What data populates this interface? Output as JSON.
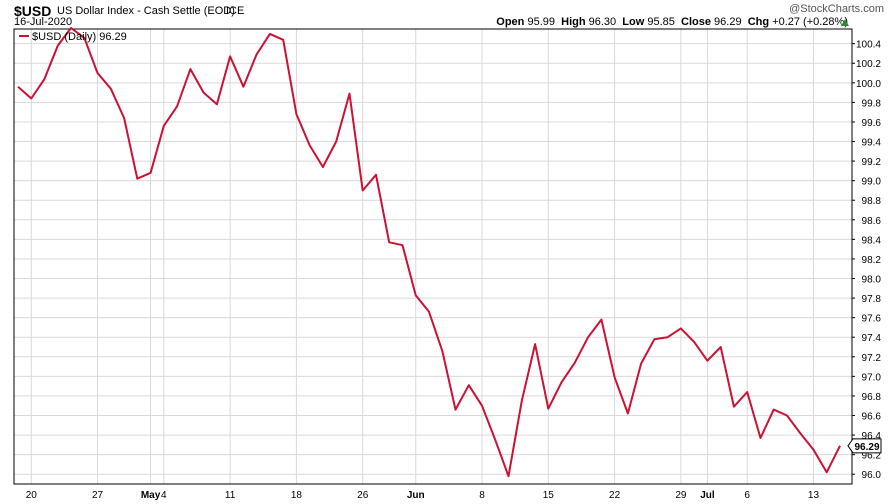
{
  "header": {
    "symbol": "$USD",
    "description": "US Dollar Index - Cash Settle (EOD)",
    "exchange": "ICE",
    "date": "16-Jul-2020",
    "watermark": "@StockCharts.com",
    "open_label": "Open",
    "open": "95.99",
    "high_label": "High",
    "high": "96.30",
    "low_label": "Low",
    "low": "95.85",
    "close_label": "Close",
    "close": "96.29",
    "chg_label": "Chg",
    "chg": "+0.27 (+0.28%)"
  },
  "legend": {
    "label": "$USD (Daily) 96.29"
  },
  "colors": {
    "line": "#cc1133",
    "grid": "#d9d9d9",
    "frame": "#000000",
    "up": "#2e8b2e"
  },
  "chart_data": {
    "type": "line",
    "title": "",
    "series": [
      {
        "name": "$USD (Daily)",
        "values": [
          99.96,
          99.84,
          100.04,
          100.38,
          100.56,
          100.46,
          100.1,
          99.94,
          99.64,
          99.02,
          99.08,
          99.56,
          99.76,
          100.14,
          99.9,
          99.78,
          100.27,
          99.96,
          100.29,
          100.5,
          100.44,
          99.68,
          99.36,
          99.14,
          99.4,
          99.89,
          98.9,
          99.06,
          98.37,
          98.34,
          97.83,
          97.66,
          97.26,
          96.66,
          96.91,
          96.7,
          96.35,
          95.98,
          96.75,
          97.33,
          96.67,
          96.94,
          97.14,
          97.4,
          97.58,
          96.99,
          96.62,
          97.13,
          97.38,
          97.4,
          97.49,
          97.35,
          97.16,
          97.3,
          96.69,
          96.84,
          96.37,
          96.66,
          96.6,
          96.42,
          96.25,
          96.02,
          96.29
        ]
      }
    ],
    "ylim": [
      95.9,
      100.55
    ],
    "y_ticks": [
      "96.0",
      "96.2",
      "96.4",
      "96.6",
      "96.8",
      "97.0",
      "97.2",
      "97.4",
      "97.6",
      "97.8",
      "98.0",
      "98.2",
      "98.4",
      "98.6",
      "98.8",
      "99.0",
      "99.2",
      "99.4",
      "99.6",
      "99.8",
      "100.0",
      "100.2",
      "100.4"
    ],
    "x_ticks": [
      {
        "label": "20",
        "index": 1,
        "bold": false
      },
      {
        "label": "27",
        "index": 6,
        "bold": false
      },
      {
        "label": "May",
        "index": 10,
        "bold": true
      },
      {
        "label": "4",
        "index": 11,
        "bold": false
      },
      {
        "label": "11",
        "index": 16,
        "bold": false
      },
      {
        "label": "18",
        "index": 21,
        "bold": false
      },
      {
        "label": "26",
        "index": 26,
        "bold": false
      },
      {
        "label": "Jun",
        "index": 30,
        "bold": true
      },
      {
        "label": "8",
        "index": 35,
        "bold": false
      },
      {
        "label": "15",
        "index": 40,
        "bold": false
      },
      {
        "label": "22",
        "index": 45,
        "bold": false
      },
      {
        "label": "29",
        "index": 50,
        "bold": false
      },
      {
        "label": "Jul",
        "index": 52,
        "bold": true
      },
      {
        "label": "6",
        "index": 55,
        "bold": false
      },
      {
        "label": "13",
        "index": 60,
        "bold": false
      }
    ],
    "last_value_label": "96.29",
    "grid": true,
    "legend_position": "top-left"
  }
}
